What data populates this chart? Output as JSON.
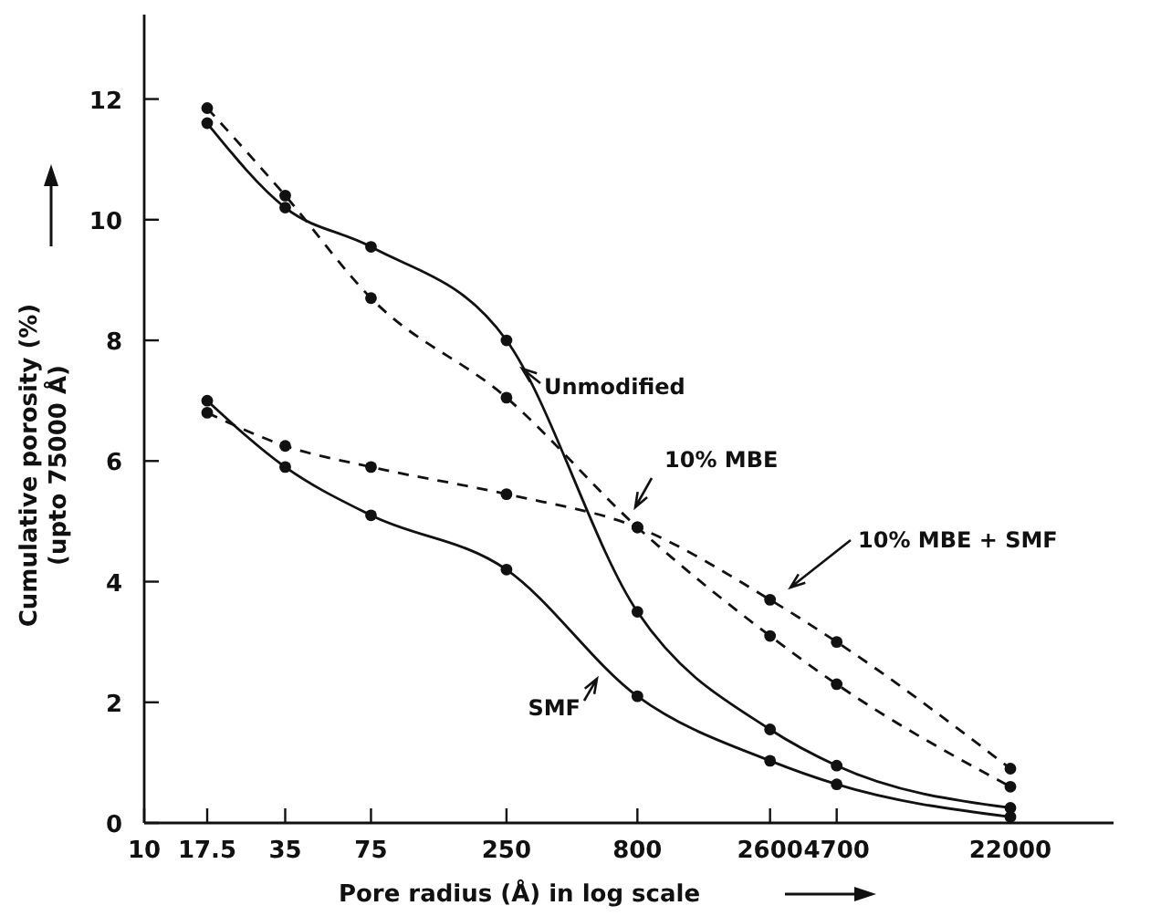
{
  "chart_data": {
    "type": "line",
    "xlabel": "Pore radius (Å) in log scale",
    "ylabel": "Cumulative porosity (%)\n(upto 75000 Å)",
    "log": "x",
    "xlim": [
      10,
      55000
    ],
    "xticks": [
      10,
      17.5,
      35,
      75,
      250,
      800,
      2600,
      4700,
      22000
    ],
    "ylim": [
      0,
      13.4
    ],
    "yticks": [
      0,
      2,
      4,
      6,
      8,
      10,
      12
    ],
    "grid": false,
    "marker": "circle",
    "series": [
      {
        "name": "Unmodified",
        "color": "#111111",
        "line_style": "solid",
        "x": [
          17.5,
          35,
          75,
          250,
          800,
          2600,
          4700,
          22000
        ],
        "values": [
          11.6,
          10.2,
          9.55,
          8.0,
          3.5,
          1.55,
          0.95,
          0.25
        ]
      },
      {
        "name": "10% MBE",
        "color": "#111111",
        "line_style": "dashed",
        "x": [
          17.5,
          35,
          75,
          250,
          800,
          2600,
          4700,
          22000
        ],
        "values": [
          11.85,
          10.4,
          8.7,
          7.05,
          4.9,
          3.1,
          2.3,
          0.6
        ]
      },
      {
        "name": "10% MBE + SMF",
        "color": "#111111",
        "line_style": "dashed",
        "x": [
          17.5,
          35,
          75,
          250,
          800,
          2600,
          4700,
          22000
        ],
        "values": [
          6.8,
          6.25,
          5.9,
          5.45,
          4.9,
          3.7,
          3.0,
          0.9
        ]
      },
      {
        "name": "SMF",
        "color": "#111111",
        "line_style": "solid",
        "x": [
          17.5,
          35,
          75,
          250,
          800,
          2600,
          4700,
          22000
        ],
        "values": [
          7.0,
          5.9,
          5.1,
          4.2,
          2.1,
          1.03,
          0.64,
          0.1
        ]
      }
    ]
  }
}
